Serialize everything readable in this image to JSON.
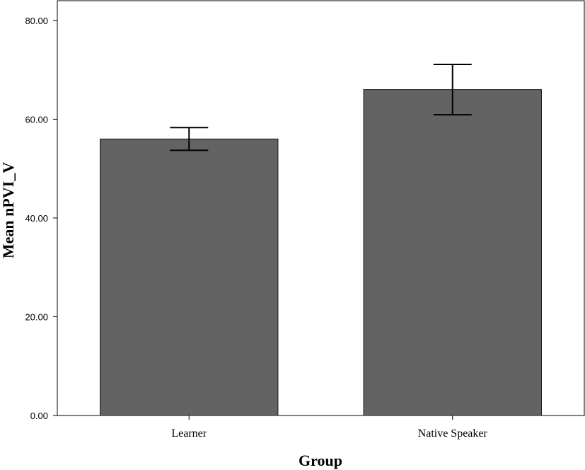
{
  "chart_data": {
    "type": "bar",
    "categories": [
      "Learner",
      "Native Speaker"
    ],
    "values": [
      56.0,
      66.0
    ],
    "error_bars": [
      {
        "low": 53.7,
        "high": 58.3
      },
      {
        "low": 60.9,
        "high": 71.1
      }
    ],
    "xlabel": "Group",
    "ylabel": "Mean nPVI_V",
    "ylim": [
      0,
      84
    ],
    "yticks": [
      0,
      20,
      40,
      60,
      80
    ],
    "ytick_labels": [
      "0.00",
      "20.00",
      "40.00",
      "60.00",
      "80.00"
    ],
    "grid": false,
    "bar_color": "#636363",
    "bar_edge_color": "#1a1a1a"
  }
}
